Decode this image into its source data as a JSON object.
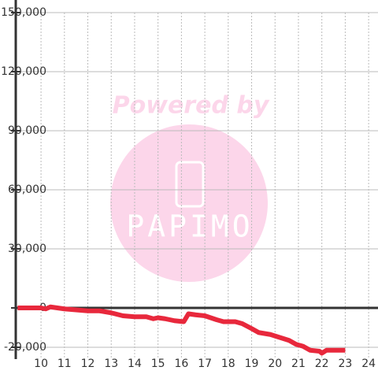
{
  "chart_data": {
    "type": "line",
    "x": [
      9,
      10,
      10.2,
      10.4,
      10.7,
      11,
      11.5,
      12,
      12.5,
      13,
      13.5,
      14,
      14.5,
      14.8,
      15,
      15.3,
      15.7,
      16.1,
      16.3,
      16.6,
      17,
      17.5,
      17.8,
      18.3,
      18.6,
      19,
      19.3,
      19.8,
      20.2,
      20.6,
      20.9,
      21.2,
      21.5,
      21.9,
      22,
      22.2,
      23
    ],
    "series": [
      {
        "color": "#e8283c",
        "values": [
          0,
          0,
          -500,
          500,
          0,
          -500,
          -1000,
          -1500,
          -1500,
          -2500,
          -4000,
          -4500,
          -4500,
          -5500,
          -5000,
          -5500,
          -6500,
          -7000,
          -3000,
          -3500,
          -4000,
          -6000,
          -7000,
          -7000,
          -8000,
          -10500,
          -12500,
          -13500,
          -15000,
          -16500,
          -18500,
          -19500,
          -21500,
          -22000,
          -23000,
          -21500,
          -21500
        ]
      }
    ],
    "xlim": [
      8.92,
      24.4
    ],
    "xticks": [
      10,
      11,
      12,
      13,
      14,
      15,
      16,
      17,
      18,
      19,
      20,
      21,
      22,
      23,
      24
    ],
    "ylim": [
      -26000,
      150000
    ],
    "yticks": [
      {
        "value": 150000,
        "label": "150,000"
      },
      {
        "value": 120000,
        "label": "120,000"
      },
      {
        "value": 90000,
        "label": "90,000"
      },
      {
        "value": 60000,
        "label": "60,000"
      },
      {
        "value": 30000,
        "label": "30,000"
      },
      0,
      {
        "value": -20000,
        "label": "-20,000"
      }
    ],
    "grid": true
  },
  "watermark": {
    "text": "Powered by",
    "logo": "PAPIMO"
  }
}
